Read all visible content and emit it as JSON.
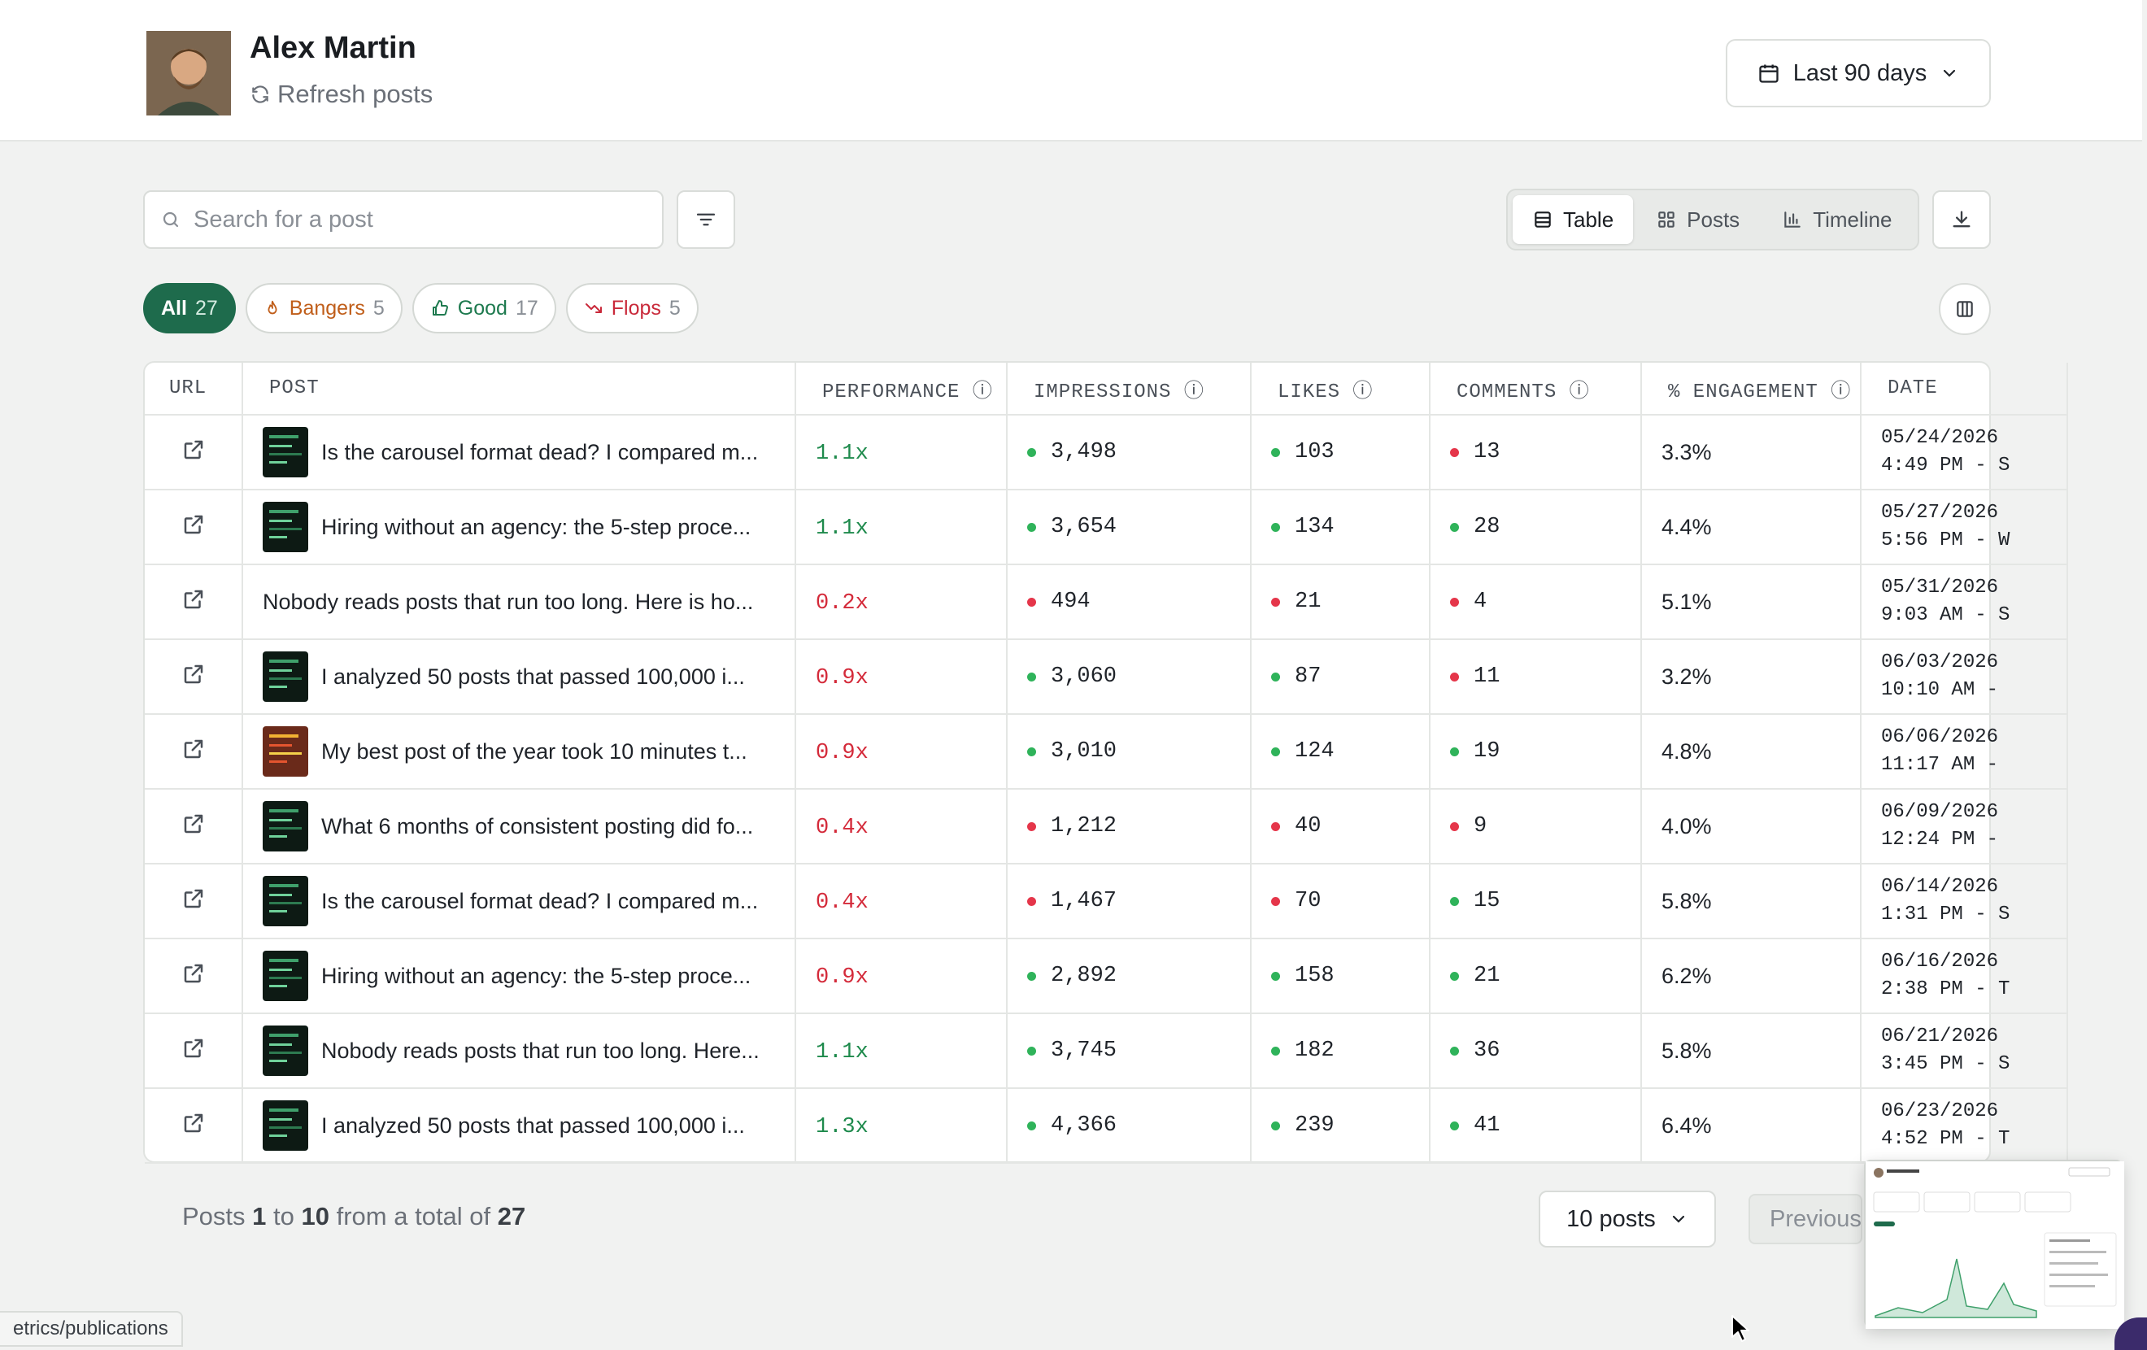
{
  "header": {
    "user_name": "Alex Martin",
    "refresh_label": "Refresh posts",
    "date_range": "Last 90 days"
  },
  "toolbar": {
    "search_placeholder": "Search for a post",
    "views": [
      "Table",
      "Posts",
      "Timeline"
    ],
    "active_view": "Table"
  },
  "filters": [
    {
      "label": "All",
      "count": "27",
      "active": true
    },
    {
      "label": "Bangers",
      "count": "5"
    },
    {
      "label": "Good",
      "count": "17"
    },
    {
      "label": "Flops",
      "count": "5"
    }
  ],
  "table": {
    "columns": [
      "URL",
      "POST",
      "PERFORMANCE",
      "IMPRESSIONS",
      "LIKES",
      "COMMENTS",
      "% ENGAGEMENT",
      "DATE"
    ],
    "rows": [
      {
        "post": "Is the carousel format dead? I compared m...",
        "thumb": "dark",
        "performance": "1.1x",
        "perf_trend": "up",
        "impressions": "3,498",
        "impressions_status": "green",
        "likes": "103",
        "likes_status": "green",
        "comments": "13",
        "comments_status": "red",
        "engagement": "3.3%",
        "date": "05/24/2026",
        "time": "4:49 PM - S"
      },
      {
        "post": "Hiring without an agency: the 5-step proce...",
        "thumb": "dark",
        "performance": "1.1x",
        "perf_trend": "up",
        "impressions": "3,654",
        "impressions_status": "green",
        "likes": "134",
        "likes_status": "green",
        "comments": "28",
        "comments_status": "green",
        "engagement": "4.4%",
        "date": "05/27/2026",
        "time": "5:56 PM - W"
      },
      {
        "post": "Nobody reads posts that run too long. Here is ho...",
        "thumb": "none",
        "performance": "0.2x",
        "perf_trend": "down",
        "impressions": "494",
        "impressions_status": "red",
        "likes": "21",
        "likes_status": "red",
        "comments": "4",
        "comments_status": "red",
        "engagement": "5.1%",
        "date": "05/31/2026",
        "time": "9:03 AM - S"
      },
      {
        "post": "I analyzed 50 posts that passed 100,000 i...",
        "thumb": "dark",
        "performance": "0.9x",
        "perf_trend": "down",
        "impressions": "3,060",
        "impressions_status": "green",
        "likes": "87",
        "likes_status": "green",
        "comments": "11",
        "comments_status": "red",
        "engagement": "3.2%",
        "date": "06/03/2026",
        "time": "10:10 AM -"
      },
      {
        "post": "My best post of the year took 10 minutes t...",
        "thumb": "warm",
        "performance": "0.9x",
        "perf_trend": "down",
        "impressions": "3,010",
        "impressions_status": "green",
        "likes": "124",
        "likes_status": "green",
        "comments": "19",
        "comments_status": "green",
        "engagement": "4.8%",
        "date": "06/06/2026",
        "time": "11:17 AM -"
      },
      {
        "post": "What 6 months of consistent posting did fo...",
        "thumb": "dark",
        "performance": "0.4x",
        "perf_trend": "down",
        "impressions": "1,212",
        "impressions_status": "red",
        "likes": "40",
        "likes_status": "red",
        "comments": "9",
        "comments_status": "red",
        "engagement": "4.0%",
        "date": "06/09/2026",
        "time": "12:24 PM -"
      },
      {
        "post": "Is the carousel format dead? I compared m...",
        "thumb": "dark",
        "performance": "0.4x",
        "perf_trend": "down",
        "impressions": "1,467",
        "impressions_status": "red",
        "likes": "70",
        "likes_status": "red",
        "comments": "15",
        "comments_status": "green",
        "engagement": "5.8%",
        "date": "06/14/2026",
        "time": "1:31 PM - S"
      },
      {
        "post": "Hiring without an agency: the 5-step proce...",
        "thumb": "dark",
        "performance": "0.9x",
        "perf_trend": "down",
        "impressions": "2,892",
        "impressions_status": "green",
        "likes": "158",
        "likes_status": "green",
        "comments": "21",
        "comments_status": "green",
        "engagement": "6.2%",
        "date": "06/16/2026",
        "time": "2:38 PM - T"
      },
      {
        "post": "Nobody reads posts that run too long. Here...",
        "thumb": "dark",
        "performance": "1.1x",
        "perf_trend": "up",
        "impressions": "3,745",
        "impressions_status": "green",
        "likes": "182",
        "likes_status": "green",
        "comments": "36",
        "comments_status": "green",
        "engagement": "5.8%",
        "date": "06/21/2026",
        "time": "3:45 PM - S"
      },
      {
        "post": "I analyzed 50 posts that passed 100,000 i...",
        "thumb": "dark",
        "performance": "1.3x",
        "perf_trend": "up",
        "impressions": "4,366",
        "impressions_status": "green",
        "likes": "239",
        "likes_status": "green",
        "comments": "41",
        "comments_status": "green",
        "engagement": "6.4%",
        "date": "06/23/2026",
        "time": "4:52 PM - T"
      }
    ]
  },
  "pagination": {
    "prefix": "Posts",
    "from": "1",
    "to_word": "to",
    "to": "10",
    "total_word": "from a total of",
    "total": "27",
    "per_page": "10 posts",
    "previous": "Previous"
  },
  "status_bar": {
    "url": "etrics/publications"
  },
  "colors": {
    "accent": "#1e6b4c",
    "positive": "#1e8a4c",
    "negative": "#d42a3a",
    "dot_green": "#2fb35a",
    "dot_red": "#e5364a"
  }
}
